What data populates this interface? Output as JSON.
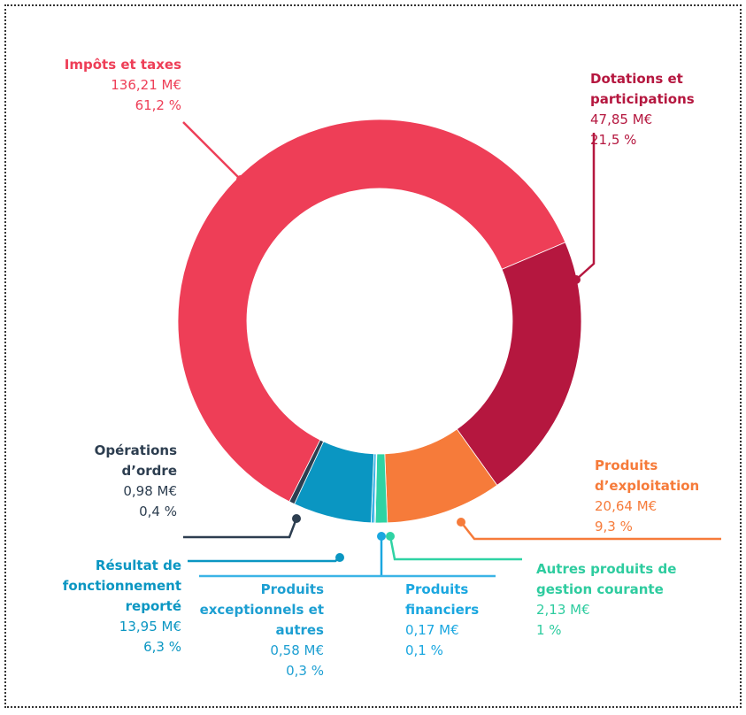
{
  "chart_data": {
    "type": "donut",
    "categories": [
      "Impôts et taxes",
      "Dotations et participations",
      "Produits d’exploitation",
      "Autres produits de gestion courante",
      "Produits financiers",
      "Produits exceptionnels et autres",
      "Résultat de fonctionnement reporté",
      "Opérations d’ordre"
    ],
    "values": [
      136.21,
      47.85,
      20.64,
      2.13,
      0.17,
      0.58,
      13.95,
      0.98
    ],
    "value_labels": [
      "136,21 M€",
      "47,85 M€",
      "20,64 M€",
      "2,13 M€",
      "0,17 M€",
      "0,58 M€",
      "13,95 M€",
      "0,98 M€"
    ],
    "percents": [
      61.2,
      21.5,
      9.3,
      1,
      0.1,
      0.3,
      6.3,
      0.4
    ],
    "percent_labels": [
      "61,2 %",
      "21,5 %",
      "9,3 %",
      "1 %",
      "0,1 %",
      "0,3 %",
      "6,3 %",
      "0,4 %"
    ],
    "colors": [
      "#ee3e57",
      "#b5173f",
      "#f67b3a",
      "#2fd3a4",
      "#1aa7e0",
      "#3bb4e6",
      "#0a96c2",
      "#2d3e50"
    ]
  }
}
